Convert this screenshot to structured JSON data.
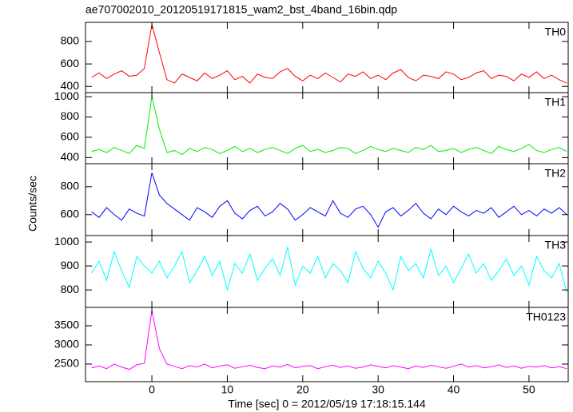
{
  "chart_data": {
    "type": "line",
    "title": "ae707002010_20120519171815_wam2_bst_4band_16bin.qdp",
    "xlabel": "Time [sec] 0 = 2012/05/19 17:18:15.144",
    "ylabel": "Counts/sec",
    "xlim": [
      -8.8,
      55.2
    ],
    "xticks": [
      0,
      10,
      20,
      30,
      40,
      50
    ],
    "x": [
      -8,
      -7,
      -6,
      -5,
      -4,
      -3,
      -2,
      -1,
      0,
      1,
      2,
      3,
      4,
      5,
      6,
      7,
      8,
      9,
      10,
      11,
      12,
      13,
      14,
      15,
      16,
      17,
      18,
      19,
      20,
      21,
      22,
      23,
      24,
      25,
      26,
      27,
      28,
      29,
      30,
      31,
      32,
      33,
      34,
      35,
      36,
      37,
      38,
      39,
      40,
      41,
      42,
      43,
      44,
      45,
      46,
      47,
      48,
      49,
      50,
      51,
      52,
      53,
      54,
      55
    ],
    "series": [
      {
        "name": "TH0",
        "color": "#ff0000",
        "ylim": [
          345,
          970
        ],
        "yticks": [
          400,
          600,
          800
        ],
        "values": [
          480,
          520,
          470,
          510,
          540,
          490,
          500,
          560,
          950,
          700,
          460,
          430,
          510,
          480,
          450,
          520,
          470,
          500,
          540,
          460,
          490,
          430,
          510,
          480,
          470,
          530,
          560,
          490,
          450,
          500,
          470,
          520,
          480,
          440,
          510,
          490,
          530,
          470,
          500,
          460,
          520,
          550,
          480,
          450,
          500,
          490,
          470,
          530,
          510,
          460,
          480,
          520,
          540,
          470,
          500,
          490,
          450,
          510,
          480,
          530,
          470,
          500,
          460,
          430
        ]
      },
      {
        "name": "TH1",
        "color": "#00ee00",
        "ylim": [
          340,
          1040
        ],
        "yticks": [
          400,
          600,
          800,
          1000
        ],
        "values": [
          460,
          480,
          450,
          500,
          470,
          440,
          520,
          490,
          1000,
          680,
          450,
          470,
          430,
          490,
          460,
          500,
          480,
          440,
          470,
          510,
          460,
          490,
          450,
          480,
          500,
          470,
          440,
          490,
          520,
          460,
          480,
          450,
          470,
          500,
          490,
          440,
          470,
          510,
          480,
          460,
          490,
          470,
          450,
          500,
          480,
          520,
          460,
          470,
          490,
          450,
          480,
          500,
          470,
          440,
          510,
          480,
          460,
          490,
          530,
          470,
          450,
          480,
          500,
          460
        ]
      },
      {
        "name": "TH2",
        "color": "#0000ff",
        "ylim": [
          450,
          965
        ],
        "yticks": [
          600,
          800
        ],
        "values": [
          620,
          580,
          650,
          600,
          560,
          640,
          610,
          590,
          900,
          740,
          680,
          640,
          600,
          560,
          650,
          620,
          580,
          660,
          700,
          610,
          570,
          630,
          660,
          590,
          620,
          680,
          640,
          560,
          600,
          650,
          620,
          590,
          700,
          610,
          580,
          640,
          660,
          600,
          510,
          620,
          650,
          590,
          630,
          680,
          610,
          570,
          640,
          600,
          660,
          620,
          590,
          630,
          610,
          650,
          580,
          620,
          660,
          600,
          630,
          590,
          640,
          610,
          650,
          600
        ]
      },
      {
        "name": "TH3",
        "color": "#00ffff",
        "ylim": [
          727,
          1027
        ],
        "yticks": [
          800,
          900,
          1000
        ],
        "values": [
          870,
          920,
          840,
          960,
          880,
          810,
          940,
          900,
          870,
          920,
          850,
          900,
          960,
          830,
          880,
          940,
          860,
          920,
          800,
          910,
          870,
          950,
          840,
          890,
          930,
          860,
          980,
          820,
          900,
          870,
          940,
          850,
          910,
          880,
          830,
          960,
          890,
          850,
          920,
          870,
          800,
          940,
          880,
          910,
          850,
          970,
          860,
          900,
          830,
          890,
          950,
          870,
          910,
          840,
          880,
          930,
          860,
          900,
          820,
          940,
          880,
          850,
          910,
          790
        ]
      },
      {
        "name": "TH0123",
        "color": "#ff00ff",
        "ylim": [
          2040,
          3980
        ],
        "yticks": [
          2500,
          3000,
          3500
        ],
        "values": [
          2400,
          2450,
          2380,
          2500,
          2420,
          2360,
          2480,
          2520,
          3900,
          2900,
          2500,
          2440,
          2380,
          2460,
          2420,
          2500,
          2400,
          2450,
          2480,
          2390,
          2430,
          2470,
          2410,
          2380,
          2450,
          2420,
          2490,
          2400,
          2440,
          2460,
          2380,
          2430,
          2470,
          2410,
          2450,
          2390,
          2420,
          2480,
          2440,
          2400,
          2460,
          2420,
          2380,
          2450,
          2410,
          2470,
          2430,
          2390,
          2440,
          2500,
          2420,
          2460,
          2400,
          2430,
          2480,
          2410,
          2450,
          2390,
          2440,
          2420,
          2460,
          2400,
          2430,
          2380
        ]
      }
    ]
  }
}
